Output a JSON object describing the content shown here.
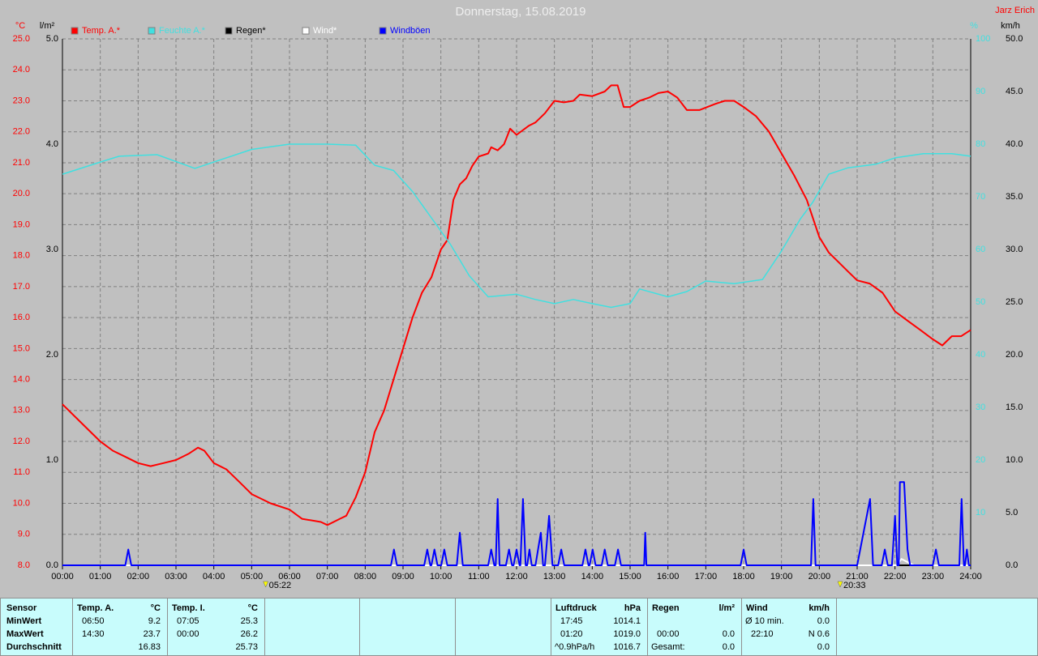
{
  "chart_data": {
    "type": "line",
    "title": "Donnerstag, 15.08.2019",
    "author": "Jarz Erich",
    "ylabel": "°C",
    "y2label": "l/m²",
    "y3label": "%",
    "y4label": "km/h",
    "xlim": [
      0,
      24
    ],
    "xticks": [
      {
        "value": 0,
        "label": "00:00"
      },
      {
        "value": 1,
        "label": "01:00"
      },
      {
        "value": 2,
        "label": "02:00"
      },
      {
        "value": 3,
        "label": "03:00"
      },
      {
        "value": 4,
        "label": "04:00"
      },
      {
        "value": 5,
        "label": "05:00"
      },
      {
        "value": 6,
        "label": "06:00"
      },
      {
        "value": 7,
        "label": "07:00"
      },
      {
        "value": 8,
        "label": "08:00"
      },
      {
        "value": 9,
        "label": "09:00"
      },
      {
        "value": 10,
        "label": "10:00"
      },
      {
        "value": 11,
        "label": "11:00"
      },
      {
        "value": 12,
        "label": "12:00"
      },
      {
        "value": 13,
        "label": "13:00"
      },
      {
        "value": 14,
        "label": "14:00"
      },
      {
        "value": 15,
        "label": "15:00"
      },
      {
        "value": 16,
        "label": "16:00"
      },
      {
        "value": 17,
        "label": "17:00"
      },
      {
        "value": 18,
        "label": "18:00"
      },
      {
        "value": 19,
        "label": "19:00"
      },
      {
        "value": 20,
        "label": "20:00"
      },
      {
        "value": 21,
        "label": "21:00"
      },
      {
        "value": 22,
        "label": "22:00"
      },
      {
        "value": 23,
        "label": "23:00"
      },
      {
        "value": 24,
        "label": "24:00"
      }
    ],
    "ylim": [
      8,
      25
    ],
    "yticks": [
      {
        "value": 8,
        "label": "8.0"
      },
      {
        "value": 9,
        "label": "9.0"
      },
      {
        "value": 10,
        "label": "10.0"
      },
      {
        "value": 11,
        "label": "11.0"
      },
      {
        "value": 12,
        "label": "12.0"
      },
      {
        "value": 13,
        "label": "13.0"
      },
      {
        "value": 14,
        "label": "14.0"
      },
      {
        "value": 15,
        "label": "15.0"
      },
      {
        "value": 16,
        "label": "16.0"
      },
      {
        "value": 17,
        "label": "17.0"
      },
      {
        "value": 18,
        "label": "18.0"
      },
      {
        "value": 19,
        "label": "19.0"
      },
      {
        "value": 20,
        "label": "20.0"
      },
      {
        "value": 21,
        "label": "21.0"
      },
      {
        "value": 22,
        "label": "22.0"
      },
      {
        "value": 23,
        "label": "23.0"
      },
      {
        "value": 24,
        "label": "24.0"
      },
      {
        "value": 25,
        "label": "25.0"
      }
    ],
    "y2lim": [
      0,
      5
    ],
    "y2ticks": [
      {
        "value": 0,
        "label": "0.0"
      },
      {
        "value": 1,
        "label": "1.0"
      },
      {
        "value": 2,
        "label": "2.0"
      },
      {
        "value": 3,
        "label": "3.0"
      },
      {
        "value": 4,
        "label": "4.0"
      },
      {
        "value": 5,
        "label": "5.0"
      }
    ],
    "y3lim": [
      0,
      100
    ],
    "y3ticks": [
      10,
      20,
      30,
      40,
      50,
      60,
      70,
      80,
      90,
      100
    ],
    "y4lim": [
      0,
      50
    ],
    "y4ticks": [
      {
        "value": 0,
        "label": "0.0"
      },
      {
        "value": 5,
        "label": "5.0"
      },
      {
        "value": 10,
        "label": "10.0"
      },
      {
        "value": 15,
        "label": "15.0"
      },
      {
        "value": 20,
        "label": "20.0"
      },
      {
        "value": 25,
        "label": "25.0"
      },
      {
        "value": 30,
        "label": "30.0"
      },
      {
        "value": 35,
        "label": "35.0"
      },
      {
        "value": 40,
        "label": "40.0"
      },
      {
        "value": 45,
        "label": "45.0"
      },
      {
        "value": 50,
        "label": "50.0"
      }
    ],
    "grid": true,
    "series": [
      {
        "name": "Temp. A.*",
        "color": "#ff0000",
        "axis": "y",
        "x": [
          0,
          0.5,
          1,
          1.33,
          1.67,
          2,
          2.33,
          2.67,
          3,
          3.33,
          3.58,
          3.75,
          4,
          4.33,
          4.67,
          5,
          5.5,
          6,
          6.33,
          6.83,
          7,
          7.33,
          7.5,
          7.75,
          8,
          8.25,
          8.5,
          8.75,
          9,
          9.25,
          9.5,
          9.75,
          10,
          10.17,
          10.33,
          10.5,
          10.67,
          10.83,
          11,
          11.25,
          11.33,
          11.5,
          11.67,
          11.83,
          12,
          12.33,
          12.5,
          12.75,
          13,
          13.25,
          13.5,
          13.67,
          14,
          14.33,
          14.5,
          14.67,
          14.83,
          15,
          15.25,
          15.5,
          15.75,
          16,
          16.25,
          16.5,
          16.83,
          17.25,
          17.5,
          17.75,
          18,
          18.33,
          18.67,
          19,
          19.33,
          19.67,
          20,
          20.25,
          20.5,
          20.75,
          21,
          21.33,
          21.67,
          22,
          22.33,
          22.67,
          23,
          23.25,
          23.5,
          23.75,
          24
        ],
        "values": [
          13.2,
          12.6,
          12.0,
          11.7,
          11.5,
          11.3,
          11.2,
          11.3,
          11.4,
          11.6,
          11.8,
          11.7,
          11.3,
          11.1,
          10.7,
          10.3,
          10.0,
          9.8,
          9.5,
          9.4,
          9.3,
          9.5,
          9.6,
          10.2,
          11.0,
          12.3,
          13.0,
          14.0,
          15.0,
          16.0,
          16.8,
          17.3,
          18.2,
          18.5,
          19.8,
          20.3,
          20.5,
          20.9,
          21.2,
          21.3,
          21.5,
          21.4,
          21.6,
          22.1,
          21.9,
          22.2,
          22.3,
          22.6,
          23.0,
          22.95,
          23.0,
          23.2,
          23.15,
          23.3,
          23.5,
          23.5,
          22.8,
          22.8,
          23.0,
          23.1,
          23.25,
          23.3,
          23.1,
          22.7,
          22.7,
          22.9,
          23.0,
          23.0,
          22.8,
          22.5,
          22.0,
          21.3,
          20.6,
          19.8,
          18.6,
          18.1,
          17.8,
          17.5,
          17.2,
          17.1,
          16.8,
          16.2,
          15.9,
          15.6,
          15.3,
          15.1,
          15.4,
          15.4,
          15.6
        ]
      },
      {
        "name": "Feuchte A.*",
        "color": "#40e0e0",
        "axis": "y3",
        "x": [
          0,
          1,
          1.5,
          2.5,
          3.5,
          4,
          5,
          6,
          7,
          7.75,
          8.25,
          8.75,
          9.25,
          9.75,
          10.25,
          10.75,
          11.25,
          12,
          12.5,
          13,
          13.5,
          14,
          14.5,
          15,
          15.25,
          16,
          16.5,
          17,
          17.75,
          18.5,
          19,
          19.5,
          19.83,
          20.25,
          20.75,
          21.5,
          22,
          22.75,
          23.5,
          24
        ],
        "values": [
          74.3,
          76.6,
          77.7,
          78,
          75.4,
          76.6,
          79,
          80,
          80,
          79.8,
          76,
          75,
          71,
          66,
          61,
          55,
          51,
          51.5,
          50.5,
          49.7,
          50.5,
          49.7,
          49,
          49.7,
          52.5,
          51,
          52,
          54,
          53.5,
          54.3,
          59.7,
          65.8,
          69,
          74.3,
          75.5,
          76.2,
          77.4,
          78.2,
          78.2,
          77.7
        ]
      },
      {
        "name": "Regen*",
        "color": "#000000",
        "axis": "y2",
        "x": [
          0,
          24
        ],
        "values": [
          0,
          0
        ]
      },
      {
        "name": "Wind*",
        "color": "#ffffff",
        "axis": "y4",
        "x": [
          0,
          22.05,
          22.17,
          22.5,
          24
        ],
        "values": [
          0,
          0,
          0.6,
          0,
          0
        ]
      },
      {
        "name": "Windböen",
        "color": "#0000ff",
        "axis": "y4",
        "x": [
          0,
          1.66,
          1.74,
          1.82,
          8.68,
          8.76,
          8.84,
          9.56,
          9.64,
          9.72,
          9.75,
          9.83,
          9.91,
          10.01,
          10.09,
          10.17,
          10.42,
          10.5,
          10.58,
          11.25,
          11.33,
          11.41,
          11.45,
          11.5,
          11.55,
          11.72,
          11.8,
          11.88,
          11.92,
          12.0,
          12.08,
          12.1,
          12.17,
          12.24,
          12.28,
          12.34,
          12.4,
          12.5,
          12.64,
          12.7,
          12.75,
          12.86,
          12.95,
          13.1,
          13.18,
          13.26,
          13.74,
          13.82,
          13.9,
          13.93,
          14.01,
          14.09,
          14.25,
          14.33,
          14.41,
          14.6,
          14.68,
          14.76,
          15.37,
          15.4,
          15.43,
          17.92,
          18.0,
          18.08,
          19.78,
          19.84,
          19.9,
          21.0,
          21.34,
          21.42,
          21.65,
          21.73,
          21.81,
          21.92,
          22.0,
          22.06,
          22.1,
          22.13,
          22.24,
          22.33,
          22.4,
          23.0,
          23.08,
          23.16,
          23.7,
          23.76,
          23.82,
          23.85,
          23.9,
          23.95,
          24
        ],
        "values": [
          0,
          0,
          1.5,
          0,
          0,
          1.5,
          0,
          0,
          1.5,
          0,
          0,
          1.5,
          0,
          0,
          1.5,
          0,
          0,
          3.1,
          0,
          0,
          1.5,
          0,
          0,
          6.3,
          0,
          0,
          1.5,
          0,
          0,
          1.5,
          0,
          0,
          6.3,
          0,
          0,
          1.5,
          0,
          0,
          3.1,
          0,
          0,
          4.7,
          0,
          0,
          1.5,
          0,
          0,
          1.5,
          0,
          0,
          1.5,
          0,
          0,
          1.5,
          0,
          0,
          1.5,
          0,
          0,
          3.1,
          0,
          0,
          1.5,
          0,
          0,
          6.3,
          0,
          0,
          6.3,
          0,
          0,
          1.5,
          0,
          0,
          4.7,
          0,
          0,
          7.9,
          7.9,
          1.5,
          0,
          0,
          1.5,
          0,
          0,
          6.3,
          0,
          0,
          1.5,
          0,
          0
        ]
      }
    ],
    "annotations": [
      {
        "x": 5.37,
        "label": "05:22"
      },
      {
        "x": 20.55,
        "label": "20:33"
      }
    ],
    "stats": {
      "labels": [
        "Sensor",
        "MinWert",
        "MaxWert",
        "Durchschnitt"
      ],
      "groups": [
        {
          "name": "Temp. A.",
          "unit": "°C",
          "rows": [
            [
              "06:50",
              "9.2"
            ],
            [
              "14:30",
              "23.7"
            ],
            [
              "16.83"
            ]
          ]
        },
        {
          "name": "Temp. I.",
          "unit": "°C",
          "rows": [
            [
              "07:05",
              "25.3"
            ],
            [
              "00:00",
              "26.2"
            ],
            [
              "25.73"
            ]
          ]
        },
        {
          "name": "Luftdruck",
          "unit": "hPa",
          "rows": [
            [
              "17:45",
              "1014.1"
            ],
            [
              "01:20",
              "1019.0"
            ],
            [
              "^0.9hPa/h",
              "1016.7"
            ]
          ]
        },
        {
          "name": "Regen",
          "unit": "l/m²",
          "rows": [
            null,
            [
              "00:00",
              "0.0"
            ],
            [
              "Gesamt:",
              "0.0"
            ]
          ]
        },
        {
          "name": "Wind",
          "unit": "km/h",
          "rows": [
            [
              "Ø 10 min.",
              "0.0"
            ],
            [
              "22:10",
              "N 0.6"
            ],
            [
              "0.0"
            ]
          ]
        }
      ]
    }
  }
}
